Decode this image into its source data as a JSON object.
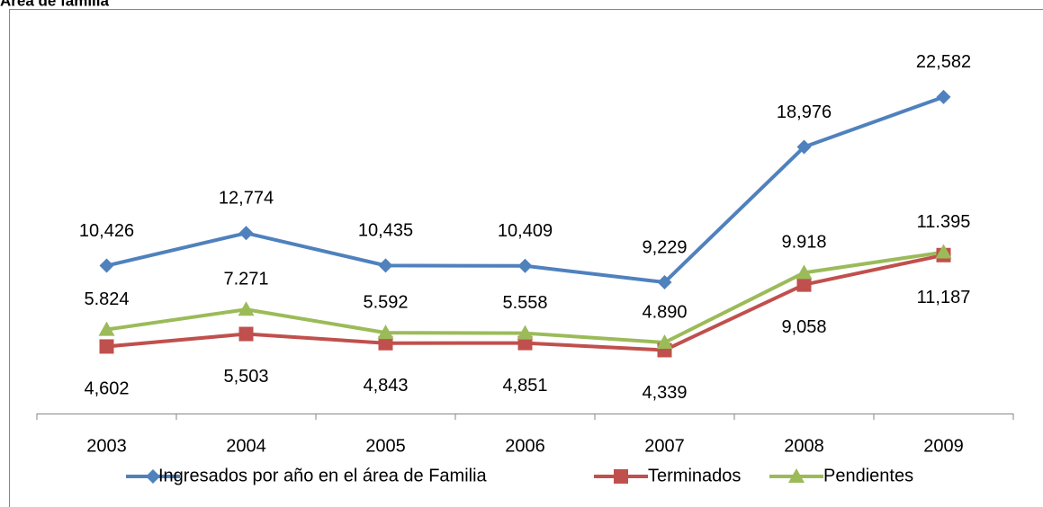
{
  "chart_data": {
    "type": "line",
    "title": "Área de familia",
    "categories": [
      "2003",
      "2004",
      "2005",
      "2006",
      "2007",
      "2008",
      "2009"
    ],
    "ylim": [
      0,
      25000
    ],
    "series": [
      {
        "name": "Ingresados por año en el área de Familia",
        "color": "#4f81bd",
        "values": [
          10426,
          12774,
          10435,
          10409,
          9229,
          18976,
          22582
        ],
        "value_labels": [
          "10,426",
          "12,774",
          "10,435",
          "10,409",
          "9,229",
          "18,976",
          "22,582"
        ]
      },
      {
        "name": "Terminados",
        "color": "#c0504d",
        "values": [
          4602,
          5503,
          4843,
          4851,
          4339,
          9058,
          11187
        ],
        "value_labels": [
          "4,602",
          "5,503",
          "4,843",
          "4,851",
          "4,339",
          "9,058",
          "11,187"
        ]
      },
      {
        "name": "Pendientes",
        "color": "#9bbb59",
        "values": [
          5824,
          7271,
          5592,
          5558,
          4890,
          9918,
          11395
        ],
        "value_labels": [
          "5.824",
          "7.271",
          "5.592",
          "5.558",
          "4.890",
          "9.918",
          "11.395"
        ]
      }
    ]
  }
}
